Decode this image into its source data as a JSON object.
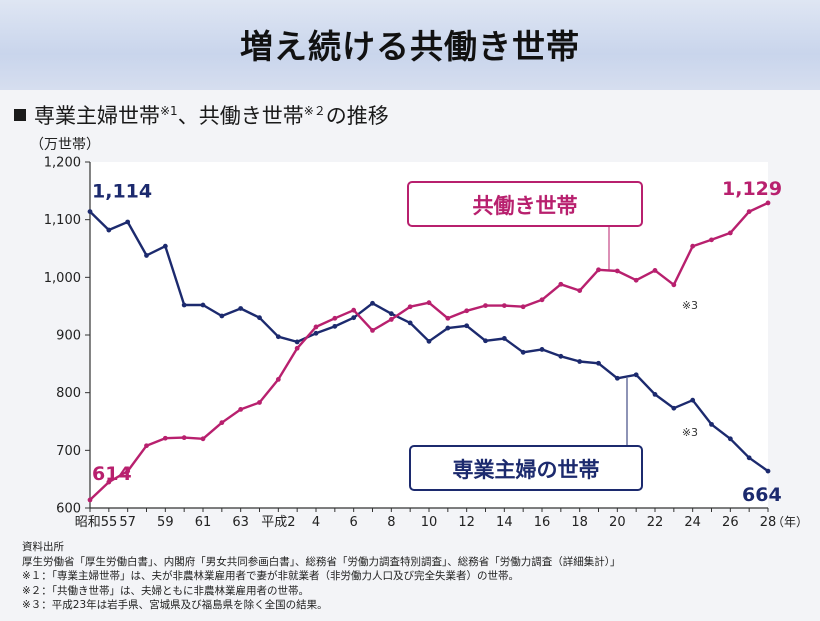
{
  "header": {
    "title": "増え続ける共働き世帯"
  },
  "subtitle": {
    "part1": "専業主婦世帯",
    "note1": "※1",
    "part2": "、共働き世帯",
    "note2": "※２",
    "part3": "の推移"
  },
  "unit_label": "（万世帯）",
  "chart_data": {
    "type": "line",
    "ylabel": "（万世帯）",
    "xlabel": "（年）",
    "ylim": [
      600,
      1200
    ],
    "y_ticks": [
      600,
      700,
      800,
      900,
      1000,
      1100,
      1200
    ],
    "y_tick_labels": [
      "600",
      "700",
      "800",
      "900",
      "1,000",
      "1,100",
      "1,200"
    ],
    "x": [
      1980,
      1981,
      1982,
      1983,
      1984,
      1985,
      1986,
      1987,
      1988,
      1989,
      1990,
      1991,
      1992,
      1993,
      1994,
      1995,
      1996,
      1997,
      1998,
      1999,
      2000,
      2001,
      2002,
      2003,
      2004,
      2005,
      2006,
      2007,
      2008,
      2009,
      2010,
      2011,
      2012,
      2013,
      2014,
      2015,
      2016
    ],
    "x_ticks": [
      1980,
      1982,
      1984,
      1986,
      1988,
      1990,
      1992,
      1994,
      1996,
      1998,
      2000,
      2002,
      2004,
      2006,
      2008,
      2010,
      2012,
      2014,
      2016
    ],
    "x_tick_labels": [
      "昭和55",
      "57",
      "59",
      "61",
      "63",
      "平成2",
      "4",
      "6",
      "8",
      "10",
      "12",
      "14",
      "16",
      "18",
      "20",
      "22",
      "24",
      "26",
      "28"
    ],
    "x_end_label": "（年）",
    "grid": false,
    "series": [
      {
        "name": "専業主婦の世帯",
        "color": "#1c2a6e",
        "values": [
          1114,
          1082,
          1096,
          1038,
          1054,
          952,
          952,
          933,
          946,
          930,
          897,
          888,
          903,
          915,
          930,
          955,
          937,
          921,
          889,
          912,
          916,
          890,
          894,
          870,
          875,
          863,
          854,
          851,
          825,
          831,
          797,
          773,
          787,
          745,
          720,
          687,
          664
        ],
        "start_label": "1,114",
        "end_label": "664",
        "missing_note": "※3"
      },
      {
        "name": "共働き世帯",
        "color": "#b8206e",
        "values": [
          614,
          645,
          664,
          708,
          721,
          722,
          720,
          748,
          771,
          783,
          823,
          877,
          914,
          929,
          943,
          908,
          927,
          949,
          956,
          929,
          942,
          951,
          951,
          949,
          961,
          988,
          977,
          1013,
          1011,
          995,
          1012,
          987,
          1054,
          1065,
          1077,
          1114,
          1129
        ],
        "start_label": "614",
        "end_label": "1,129",
        "missing_note": "※3"
      }
    ]
  },
  "notes": {
    "heading": "資料出所",
    "source": "厚生労働省「厚生労働白書」、内閣府「男女共同参画白書」、総務省「労働力調査特別調査」、総務省「労働力調査（詳細集計）」",
    "note1": "※１：「専業主婦世帯」は、夫が非農林業雇用者で妻が非就業者（非労働力人口及び完全失業者）の世帯。",
    "note2": "※２：「共働き世帯」は、夫婦ともに非農林業雇用者の世帯。",
    "note3": "※３：平成23年は岩手県、宮城県及び福島県を除く全国の結果。"
  }
}
